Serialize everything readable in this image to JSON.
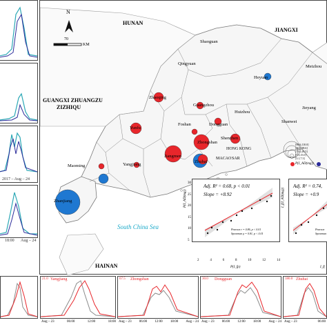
{
  "map": {
    "north_label": "N",
    "scale_values": [
      "70",
      "KM"
    ],
    "regions": [
      "HUNAN",
      "JIANGXI",
      "GUANGXI ZHUANGZU",
      "ZIZHIQU",
      "HAINAN"
    ],
    "sea": "South China Sea",
    "hk": [
      "HONG KONG",
      "MACAO",
      "SAR"
    ],
    "cities": [
      "Shaoguan",
      "Qingyuan",
      "Meizhou",
      "Heyuan",
      "Zhaoqing",
      "Guangzhou",
      "Huizhou",
      "Yunfu",
      "Foshan",
      "Dongguan",
      "Shanwei",
      "Jieyang",
      "Shenzhen",
      "Zhongshan",
      "Jiangmen",
      "Zhuhai",
      "Maoming",
      "Yangjiang",
      "Zhanjiang"
    ],
    "legend": {
      "ticks": [
        "[98.6,110.0]",
        "[26.5,98.6]",
        "[15.0,26.5]",
        "[7.3,15.0]",
        "[3.1,7.3]"
      ],
      "label": "P(I_AD(mg))"
    }
  },
  "left_panels": {
    "labels": [
      "2017 – Aug – 24",
      "18:00",
      "Aug – 24"
    ]
  },
  "regression": [
    {
      "stat1": "Adj. R² = 0.68, p < 0.01",
      "stat2": "Slope = +8.92",
      "ylabel": "P(I_AD(mg))",
      "xlabel": "P(I_fp)",
      "xticks": [
        "2",
        "4",
        "6",
        "8",
        "10",
        "12",
        "14"
      ],
      "yticks": [
        "5",
        "10",
        "15",
        "20",
        "25",
        "30"
      ],
      "pearson": "Pearson r = 0.86, p < 0.01",
      "spearman": "Spearman ρ = 0.81, p < 0.01"
    },
    {
      "stat1": "Adj. R² = 0.74,",
      "stat2": "Slope = +0.9",
      "ylabel": "I_f(I_AD(mg))",
      "xlabel": "I_f(",
      "pearson": "Pearson",
      "spearman": "Spearman"
    }
  ],
  "bottom_panels": [
    {
      "title": "",
      "value": ""
    },
    {
      "title": "Yangjiang",
      "value": "21.0"
    },
    {
      "title": "Zhongshan",
      "value": "67.5"
    },
    {
      "title": "Dongguan",
      "value": "30.0"
    },
    {
      "title": "Zhuhai",
      "value": "180.0"
    }
  ],
  "bottom_xticks": [
    "Aug – 23",
    "06:00",
    "12:00",
    "18:00",
    "Aug – 24"
  ],
  "colors": {
    "red": "#e8262b",
    "blue": "#1f78d1",
    "grey": "#8a8a8a",
    "teal": "#2aa7b5",
    "navy": "#2b2b9a"
  }
}
